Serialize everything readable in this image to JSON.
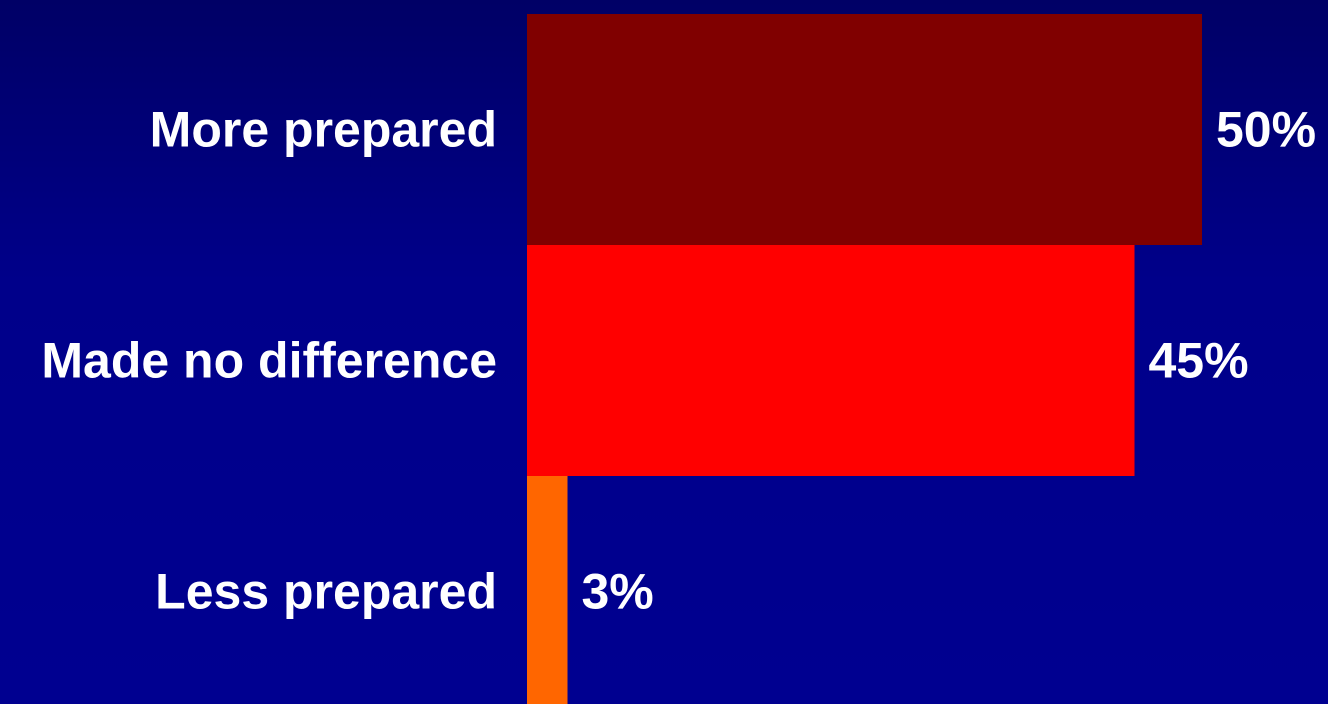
{
  "chart_data": {
    "type": "bar",
    "orientation": "horizontal",
    "categories": [
      "More prepared",
      "Made no difference",
      "Less prepared"
    ],
    "values": [
      50,
      45,
      3
    ],
    "value_labels": [
      "50%",
      "45%",
      "3%"
    ],
    "bar_colors": [
      "#800000",
      "#ff0000",
      "#ff6600"
    ],
    "xlim": [
      0,
      50
    ],
    "grid": false,
    "legend": "none"
  },
  "colors": {
    "background_top": "#000066",
    "background_bottom": "#000090",
    "label_text": "#ffffff"
  }
}
